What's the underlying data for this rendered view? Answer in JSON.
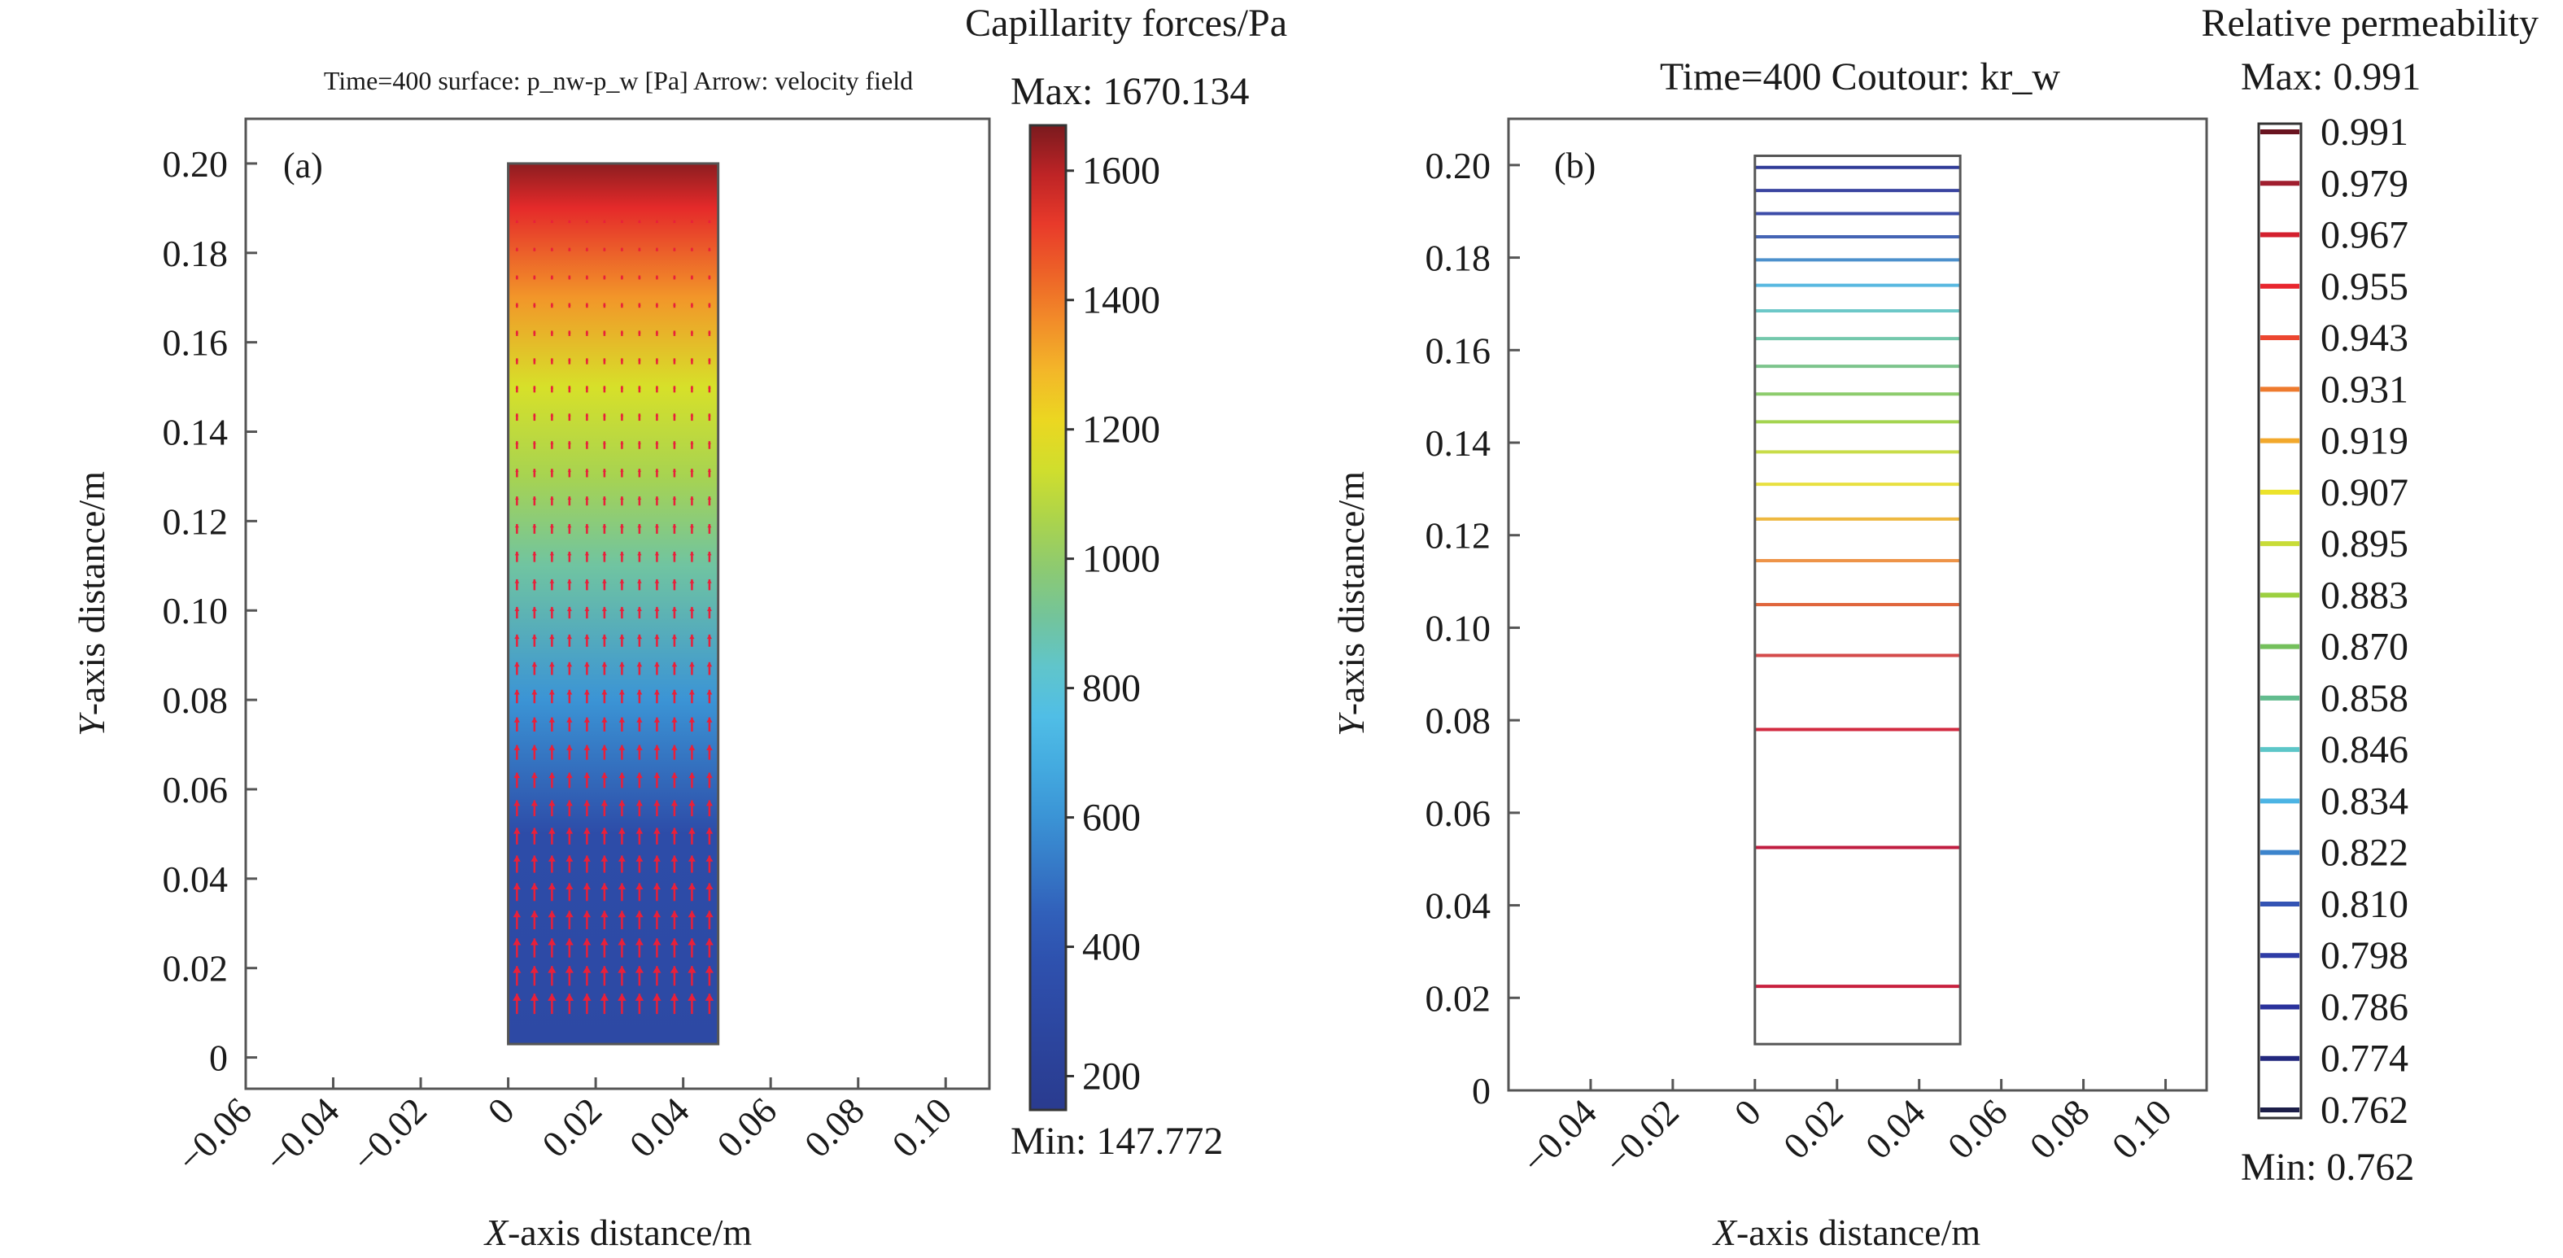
{
  "chart_data": [
    {
      "id": "a",
      "type": "heatmap",
      "panel_label": "(a)",
      "title": "Time=400  surface: p_nw-p_w [Pa]  Arrow: velocity field",
      "xlabel_italic": "X",
      "xlabel_rest": "-axis distance/m",
      "ylabel_italic": "Y",
      "ylabel_rest": "-axis distance/m",
      "xlim": [
        -0.06,
        0.11
      ],
      "ylim": [
        -0.007,
        0.21
      ],
      "xticks": [
        -0.06,
        -0.04,
        -0.02,
        0,
        0.02,
        0.04,
        0.06,
        0.08,
        0.1
      ],
      "xtick_labels": [
        "−0.06",
        "−0.04",
        "−0.02",
        "0",
        "0.02",
        "0.04",
        "0.06",
        "0.08",
        "0.10"
      ],
      "yticks": [
        0,
        0.02,
        0.04,
        0.06,
        0.08,
        0.1,
        0.12,
        0.14,
        0.16,
        0.18,
        0.2
      ],
      "ytick_labels": [
        "0",
        "0.02",
        "0.04",
        "0.06",
        "0.08",
        "0.10",
        "0.12",
        "0.14",
        "0.16",
        "0.18",
        "0.20"
      ],
      "domain_x": [
        0,
        0.048
      ],
      "domain_y": [
        0.003,
        0.2
      ],
      "surface_profile": {
        "y": [
          0.003,
          0.05,
          0.08,
          0.11,
          0.13,
          0.15,
          0.17,
          0.19,
          0.2
        ],
        "value": [
          300,
          330,
          600,
          900,
          1050,
          1150,
          1350,
          1550,
          1650
        ]
      },
      "arrow_grid": {
        "x_step": 0.004,
        "y_step": 0.00625,
        "y_from": 0.012,
        "y_to": 0.19,
        "color": "#e8203a"
      },
      "colorbar": {
        "title": "Capillarity forces/Pa",
        "max_label": "Max: 1670.134",
        "min_label": "Min: 147.772",
        "max": 1670.134,
        "min": 147.772,
        "ticks": [
          200,
          400,
          600,
          800,
          1000,
          1200,
          1400,
          1600
        ],
        "tick_labels": [
          "200",
          "400",
          "600",
          "800",
          "1000",
          "1200",
          "1400",
          "1600"
        ]
      }
    },
    {
      "id": "b",
      "type": "line",
      "panel_label": "(b)",
      "title": "Time=400  Coutour: kr_w",
      "xlabel_italic": "X",
      "xlabel_rest": "-axis distance/m",
      "ylabel_italic": "Y",
      "ylabel_rest": "-axis distance/m",
      "xlim": [
        -0.06,
        0.11
      ],
      "ylim": [
        0,
        0.21
      ],
      "xticks": [
        -0.04,
        -0.02,
        0,
        0.02,
        0.04,
        0.06,
        0.08,
        0.1
      ],
      "xtick_labels": [
        "−0.04",
        "−0.02",
        "0",
        "0.02",
        "0.04",
        "0.06",
        "0.08",
        "0.10"
      ],
      "yticks": [
        0,
        0.02,
        0.04,
        0.06,
        0.08,
        0.1,
        0.12,
        0.14,
        0.16,
        0.18,
        0.2
      ],
      "ytick_labels": [
        "0",
        "0.02",
        "0.04",
        "0.06",
        "0.08",
        "0.10",
        "0.12",
        "0.14",
        "0.16",
        "0.18",
        "0.20"
      ],
      "domain_x": [
        0,
        0.05
      ],
      "domain_y": [
        0.01,
        0.202
      ],
      "contours": {
        "y": [
          0.0225,
          0.0525,
          0.078,
          0.094,
          0.105,
          0.1145,
          0.1235,
          0.131,
          0.138,
          0.1445,
          0.1505,
          0.1565,
          0.1625,
          0.1685,
          0.174,
          0.1795,
          0.1845,
          0.1895,
          0.1945,
          0.1995
        ],
        "color": [
          "#c8203e",
          "#c01c40",
          "#d22a40",
          "#d44a4a",
          "#e0663c",
          "#ee9448",
          "#eeb840",
          "#e8e040",
          "#c8dc48",
          "#a4d450",
          "#8ccc6c",
          "#7cc48c",
          "#74c8ac",
          "#6cc8c8",
          "#58b8e0",
          "#4c90cc",
          "#4464b4",
          "#3c4ca8",
          "#3a44a0",
          "#303c98"
        ]
      },
      "colorbar": {
        "title": "Relative permeability",
        "max_label": "Max: 0.991",
        "min_label": "Min: 0.762",
        "levels": [
          0.991,
          0.979,
          0.967,
          0.955,
          0.943,
          0.931,
          0.919,
          0.907,
          0.895,
          0.883,
          0.87,
          0.858,
          0.846,
          0.834,
          0.822,
          0.81,
          0.798,
          0.786,
          0.774,
          0.762
        ],
        "level_labels": [
          "0.991",
          "0.979",
          "0.967",
          "0.955",
          "0.943",
          "0.931",
          "0.919",
          "0.907",
          "0.895",
          "0.883",
          "0.870",
          "0.858",
          "0.846",
          "0.834",
          "0.822",
          "0.810",
          "0.798",
          "0.786",
          "0.774",
          "0.762"
        ],
        "level_colors": [
          "#6a1420",
          "#a01e2e",
          "#d4202e",
          "#e8262e",
          "#ec4630",
          "#ee7a2e",
          "#f2a82c",
          "#ece32a",
          "#c8dc38",
          "#9cd040",
          "#74c05c",
          "#62bc8e",
          "#5cc6c8",
          "#4cb4e4",
          "#3c84cc",
          "#3454b4",
          "#2e3ca6",
          "#2a329c",
          "#22287e",
          "#1c1e48"
        ]
      }
    }
  ]
}
